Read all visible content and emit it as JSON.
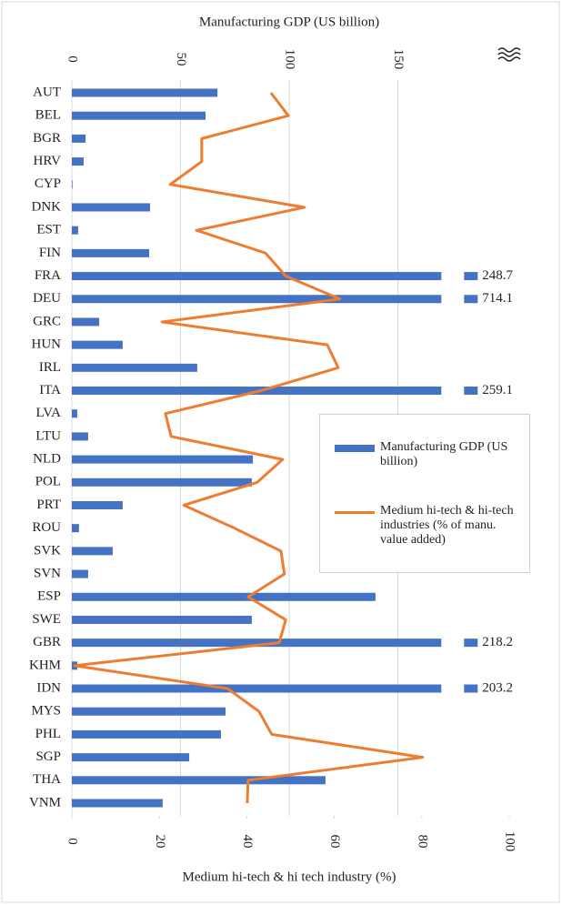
{
  "chart_data": {
    "type": "bar",
    "xlabel": "Manufacturing GDP (US billion)",
    "x2label": "Medium hi-tech & hi tech industry (%)",
    "categories": [
      "AUT",
      "BEL",
      "BGR",
      "HRV",
      "CYP",
      "DNK",
      "EST",
      "FIN",
      "FRA",
      "DEU",
      "GRC",
      "HUN",
      "IRL",
      "ITA",
      "LVA",
      "LTU",
      "NLD",
      "POL",
      "PRT",
      "ROU",
      "SVK",
      "SVN",
      "ESP",
      "SWE",
      "GBR",
      "KHM",
      "IDN",
      "MYS",
      "PHL",
      "SGP",
      "THA",
      "VNM"
    ],
    "series": [
      {
        "name": "Manufacturing GDP (US billion)",
        "type": "bar",
        "color": "#4472c4",
        "values": [
          67,
          61.5,
          6.3,
          5.4,
          0.3,
          36,
          2.9,
          35.6,
          248.7,
          714.1,
          12.6,
          23.4,
          57.7,
          259.1,
          2.5,
          7.5,
          83.3,
          82.8,
          23.4,
          3.3,
          18.8,
          7.5,
          139.7,
          82.8,
          218.2,
          2.5,
          203.2,
          70.7,
          68.6,
          54,
          116.7,
          41.8
        ]
      },
      {
        "name": "Medium hi-tech & hi-tech industries (% of manu. value added)",
        "type": "line",
        "axis": "x2",
        "color": "#ed7d31",
        "values": [
          45.5,
          49.5,
          29.7,
          29.7,
          22.5,
          53.2,
          28.5,
          44.3,
          48.9,
          61.3,
          20.6,
          58.4,
          60.9,
          43.2,
          21.4,
          22.7,
          48.2,
          42.4,
          25.6,
          37.2,
          47.8,
          48.6,
          40.3,
          48.9,
          47.4,
          0.6,
          35.6,
          42.8,
          45.7,
          80.2,
          40.3,
          40.1
        ]
      }
    ],
    "xlim": [
      0,
      170
    ],
    "xticks": [
      0,
      50,
      100,
      150
    ],
    "x2lim": [
      0,
      100
    ],
    "x2ticks": [
      0,
      20,
      40,
      60,
      80,
      100
    ],
    "axis_break": true,
    "grid": true
  }
}
